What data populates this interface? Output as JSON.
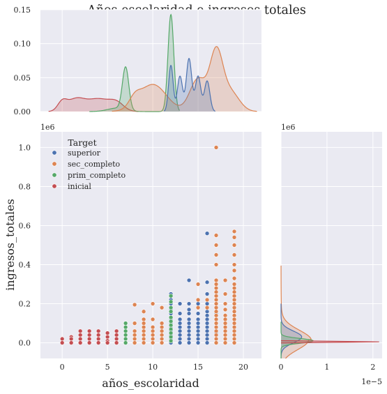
{
  "chart_data": {
    "type": "scatter",
    "title": "Años escolaridad e ingresos totales",
    "xlabel": "años_escolaridad",
    "ylabel": "ingresos_totales",
    "x_ticks": [
      0,
      5,
      10,
      15,
      20
    ],
    "xlim": [
      -2.4,
      22
    ],
    "y_ticks": [
      0.0,
      0.2,
      0.4,
      0.6,
      0.8,
      1.0
    ],
    "ylim": [
      -0.08,
      1.08
    ],
    "y_multiplier": "1e6",
    "grid": true,
    "legend": {
      "title": "Target",
      "position": "top-left"
    },
    "colors": {
      "superior": "#4c72b0",
      "sec_completo": "#dd8452",
      "prim_completo": "#55a868",
      "inicial": "#c44e52",
      "background": "#eaeaf2",
      "grid": "#ffffff"
    },
    "series": [
      {
        "name": "superior",
        "points": [
          [
            12,
            0.25
          ],
          [
            12,
            0.22
          ],
          [
            12,
            0.2
          ],
          [
            12,
            0.17
          ],
          [
            12,
            0.15
          ],
          [
            12,
            0.12
          ],
          [
            12,
            0.1
          ],
          [
            12,
            0.08
          ],
          [
            12,
            0.06
          ],
          [
            12,
            0.04
          ],
          [
            12,
            0.02
          ],
          [
            12,
            0.0
          ],
          [
            13,
            0.2
          ],
          [
            13,
            0.15
          ],
          [
            13,
            0.12
          ],
          [
            13,
            0.1
          ],
          [
            13,
            0.08
          ],
          [
            13,
            0.06
          ],
          [
            13,
            0.04
          ],
          [
            13,
            0.02
          ],
          [
            13,
            0.0
          ],
          [
            14,
            0.32
          ],
          [
            14,
            0.2
          ],
          [
            14,
            0.17
          ],
          [
            14,
            0.15
          ],
          [
            14,
            0.12
          ],
          [
            14,
            0.1
          ],
          [
            14,
            0.08
          ],
          [
            14,
            0.06
          ],
          [
            14,
            0.04
          ],
          [
            14,
            0.02
          ],
          [
            14,
            0.0
          ],
          [
            15,
            0.2
          ],
          [
            15,
            0.15
          ],
          [
            15,
            0.12
          ],
          [
            15,
            0.1
          ],
          [
            15,
            0.08
          ],
          [
            15,
            0.06
          ],
          [
            15,
            0.04
          ],
          [
            15,
            0.02
          ],
          [
            15,
            0.0
          ],
          [
            16,
            0.56
          ],
          [
            16,
            0.31
          ],
          [
            16,
            0.25
          ],
          [
            16,
            0.2
          ],
          [
            16,
            0.16
          ],
          [
            16,
            0.14
          ],
          [
            16,
            0.12
          ],
          [
            16,
            0.1
          ],
          [
            16,
            0.08
          ],
          [
            16,
            0.06
          ],
          [
            16,
            0.04
          ],
          [
            16,
            0.02
          ],
          [
            16,
            0.0
          ],
          [
            17,
            0.22
          ],
          [
            17,
            0.15
          ],
          [
            17,
            0.1
          ],
          [
            17,
            0.05
          ],
          [
            17,
            0.02
          ]
        ]
      },
      {
        "name": "sec_completo",
        "points": [
          [
            8,
            0.195
          ],
          [
            8,
            0.1
          ],
          [
            8,
            0.06
          ],
          [
            8,
            0.04
          ],
          [
            8,
            0.02
          ],
          [
            8,
            0.0
          ],
          [
            9,
            0.16
          ],
          [
            9,
            0.12
          ],
          [
            9,
            0.1
          ],
          [
            9,
            0.08
          ],
          [
            9,
            0.06
          ],
          [
            9,
            0.04
          ],
          [
            9,
            0.02
          ],
          [
            9,
            0.0
          ],
          [
            10,
            0.2
          ],
          [
            10,
            0.12
          ],
          [
            10,
            0.08
          ],
          [
            10,
            0.06
          ],
          [
            10,
            0.04
          ],
          [
            10,
            0.02
          ],
          [
            10,
            0.0
          ],
          [
            11,
            0.18
          ],
          [
            11,
            0.1
          ],
          [
            11,
            0.08
          ],
          [
            11,
            0.06
          ],
          [
            11,
            0.04
          ],
          [
            11,
            0.02
          ],
          [
            11,
            0.0
          ],
          [
            15,
            0.3
          ],
          [
            15,
            0.22
          ],
          [
            15,
            0.18
          ],
          [
            16,
            0.22
          ],
          [
            16,
            0.18
          ],
          [
            17,
            1.0
          ],
          [
            17,
            0.55
          ],
          [
            17,
            0.5
          ],
          [
            17,
            0.45
          ],
          [
            17,
            0.4
          ],
          [
            17,
            0.32
          ],
          [
            17,
            0.3
          ],
          [
            17,
            0.28
          ],
          [
            17,
            0.26
          ],
          [
            17,
            0.24
          ],
          [
            17,
            0.22
          ],
          [
            17,
            0.2
          ],
          [
            17,
            0.18
          ],
          [
            17,
            0.16
          ],
          [
            17,
            0.14
          ],
          [
            17,
            0.12
          ],
          [
            17,
            0.1
          ],
          [
            17,
            0.08
          ],
          [
            17,
            0.06
          ],
          [
            17,
            0.04
          ],
          [
            17,
            0.02
          ],
          [
            17,
            0.0
          ],
          [
            18,
            0.32
          ],
          [
            18,
            0.25
          ],
          [
            18,
            0.2
          ],
          [
            18,
            0.17
          ],
          [
            18,
            0.14
          ],
          [
            18,
            0.12
          ],
          [
            18,
            0.1
          ],
          [
            18,
            0.08
          ],
          [
            18,
            0.06
          ],
          [
            18,
            0.04
          ],
          [
            18,
            0.02
          ],
          [
            18,
            0.0
          ],
          [
            19,
            0.57
          ],
          [
            19,
            0.54
          ],
          [
            19,
            0.5
          ],
          [
            19,
            0.45
          ],
          [
            19,
            0.4
          ],
          [
            19,
            0.37
          ],
          [
            19,
            0.33
          ],
          [
            19,
            0.3
          ],
          [
            19,
            0.28
          ],
          [
            19,
            0.26
          ],
          [
            19,
            0.24
          ],
          [
            19,
            0.22
          ],
          [
            19,
            0.2
          ],
          [
            19,
            0.18
          ],
          [
            19,
            0.16
          ],
          [
            19,
            0.14
          ],
          [
            19,
            0.12
          ],
          [
            19,
            0.1
          ],
          [
            19,
            0.08
          ],
          [
            19,
            0.06
          ],
          [
            19,
            0.04
          ],
          [
            19,
            0.02
          ],
          [
            19,
            0.0
          ]
        ]
      },
      {
        "name": "prim_completo",
        "points": [
          [
            7,
            0.1
          ],
          [
            7,
            0.08
          ],
          [
            7,
            0.06
          ],
          [
            7,
            0.04
          ],
          [
            7,
            0.02
          ],
          [
            7,
            0.0
          ],
          [
            12,
            0.24
          ],
          [
            12,
            0.21
          ],
          [
            12,
            0.18
          ],
          [
            12,
            0.16
          ],
          [
            12,
            0.13
          ],
          [
            12,
            0.11
          ],
          [
            12,
            0.09
          ],
          [
            12,
            0.07
          ],
          [
            12,
            0.05
          ],
          [
            12,
            0.03
          ],
          [
            12,
            0.01
          ]
        ]
      },
      {
        "name": "inicial",
        "points": [
          [
            0,
            0.02
          ],
          [
            0,
            0.0
          ],
          [
            1,
            0.03
          ],
          [
            1,
            0.02
          ],
          [
            1,
            0.0
          ],
          [
            2,
            0.06
          ],
          [
            2,
            0.04
          ],
          [
            2,
            0.02
          ],
          [
            2,
            0.0
          ],
          [
            3,
            0.06
          ],
          [
            3,
            0.04
          ],
          [
            3,
            0.02
          ],
          [
            3,
            0.0
          ],
          [
            4,
            0.06
          ],
          [
            4,
            0.04
          ],
          [
            4,
            0.02
          ],
          [
            4,
            0.0
          ],
          [
            5,
            0.05
          ],
          [
            5,
            0.03
          ],
          [
            5,
            0.01
          ],
          [
            5,
            0.0
          ],
          [
            6,
            0.06
          ],
          [
            6,
            0.04
          ],
          [
            6,
            0.02
          ],
          [
            6,
            0.0
          ]
        ]
      }
    ],
    "marginal_x": {
      "ylim": [
        0,
        0.15
      ],
      "y_ticks": [
        "0.00",
        "0.05",
        "0.10",
        "0.15"
      ],
      "densities": [
        {
          "name": "superior",
          "peaks": [
            [
              12,
              0.068,
              0.25
            ],
            [
              13,
              0.052,
              0.28
            ],
            [
              14,
              0.078,
              0.3
            ],
            [
              15,
              0.052,
              0.3
            ],
            [
              16,
              0.045,
              0.3
            ]
          ]
        },
        {
          "name": "sec_completo",
          "peaks": [
            [
              8,
              0.012,
              0.6
            ],
            [
              10,
              0.04,
              1.5
            ],
            [
              15,
              0.048,
              0.9
            ],
            [
              17,
              0.082,
              0.7
            ],
            [
              18.5,
              0.03,
              1.0
            ]
          ]
        },
        {
          "name": "prim_completo",
          "peaks": [
            [
              7,
              0.063,
              0.35
            ],
            [
              12,
              0.143,
              0.32
            ],
            [
              6,
              0.005,
              1.0
            ]
          ]
        },
        {
          "name": "inicial",
          "peaks": [
            [
              0,
              0.012,
              0.5
            ],
            [
              1.5,
              0.018,
              1.0
            ],
            [
              4,
              0.018,
              1.2
            ],
            [
              6,
              0.012,
              0.8
            ]
          ]
        }
      ]
    },
    "marginal_y": {
      "x_ticks": [
        "0",
        "1",
        "2"
      ],
      "x_multiplier": "1e−5",
      "xlim": [
        0,
        2.2
      ],
      "densities": [
        {
          "name": "superior",
          "center": 0.03,
          "height": 0.45,
          "sd": 0.03
        },
        {
          "name": "sec_completo",
          "center": 0.015,
          "height": 0.6,
          "sd": 0.05
        },
        {
          "name": "prim_completo",
          "center": 0.01,
          "height": 0.7,
          "sd": 0.012
        },
        {
          "name": "inicial",
          "center": 0.005,
          "height": 2.1,
          "sd": 0.006
        }
      ]
    }
  }
}
